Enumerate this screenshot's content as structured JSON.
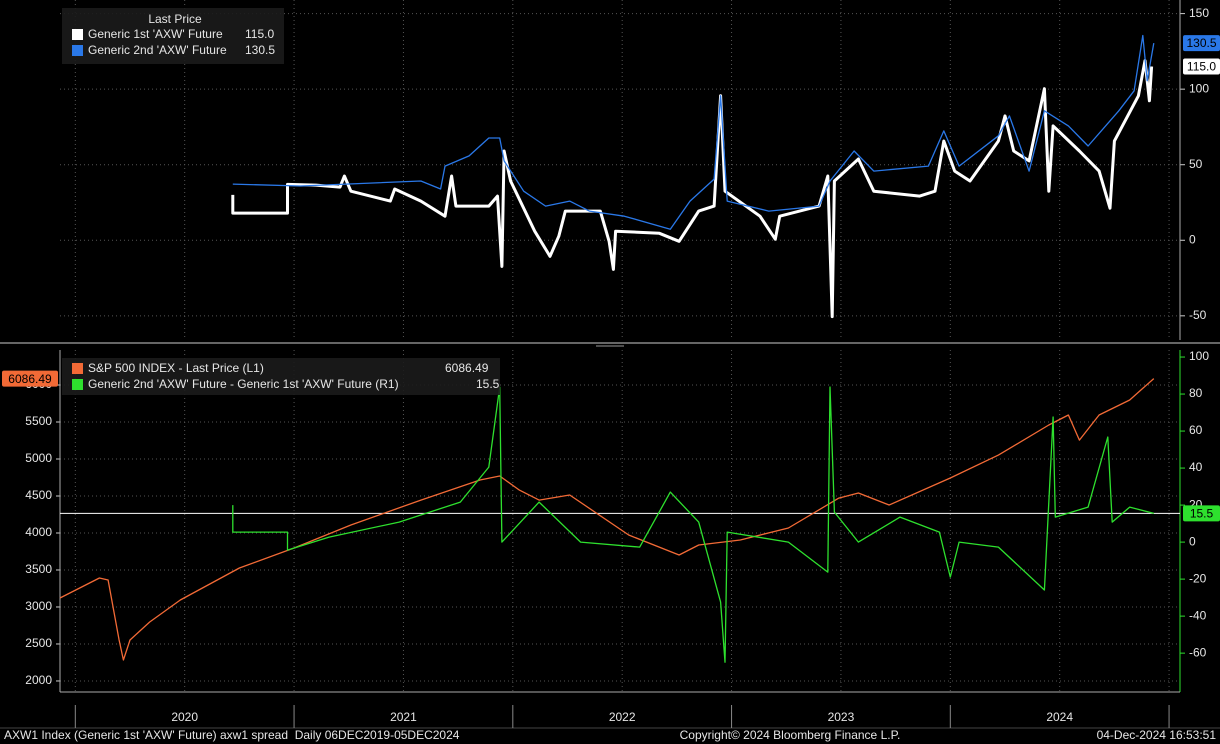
{
  "chart_data": [
    {
      "type": "line",
      "legend_title": "Last Price",
      "xlim": [
        2019.93,
        2025.05
      ],
      "ylim": [
        -66,
        159
      ],
      "yticks": [
        -50,
        0,
        50,
        100,
        150
      ],
      "grid": true,
      "series": [
        {
          "name": "Generic 1st 'AXW' Future",
          "color": "#ffffff",
          "value_label": "115.0",
          "x": [
            2020.72,
            2020.72,
            2020.97,
            2020.97,
            2021.1,
            2021.21,
            2021.23,
            2021.26,
            2021.44,
            2021.46,
            2021.58,
            2021.69,
            2021.72,
            2021.74,
            2021.89,
            2021.93,
            2021.95,
            2021.96,
            2021.99,
            2022.1,
            2022.17,
            2022.21,
            2022.24,
            2022.4,
            2022.44,
            2022.46,
            2022.47,
            2022.67,
            2022.76,
            2022.85,
            2022.92,
            2022.95,
            2022.97,
            2023.13,
            2023.2,
            2023.22,
            2023.4,
            2023.44,
            2023.46,
            2023.47,
            2023.58,
            2023.65,
            2023.86,
            2023.93,
            2023.97,
            2024.02,
            2024.09,
            2024.22,
            2024.25,
            2024.29,
            2024.36,
            2024.43,
            2024.45,
            2024.47,
            2024.59,
            2024.68,
            2024.73,
            2024.75,
            2024.86,
            2024.89,
            2024.91,
            2024.92
          ],
          "values": [
            30,
            18,
            18,
            37,
            36.5,
            35.2,
            42.5,
            32.5,
            25.9,
            33.9,
            25.9,
            15.9,
            42.5,
            22.6,
            22.6,
            29.2,
            -17.3,
            59.1,
            39.2,
            6.0,
            -10.6,
            2.7,
            19.3,
            19.3,
            -0.7,
            -19.3,
            6.0,
            4.6,
            -0.7,
            19.3,
            22.6,
            95.6,
            32.5,
            15.9,
            0.7,
            15.9,
            22.6,
            42.5,
            -50.5,
            39.2,
            53.8,
            32.5,
            29.2,
            32.5,
            65.7,
            45.8,
            39.2,
            65.7,
            82.3,
            59.1,
            52.5,
            100.3,
            32.5,
            75.7,
            59.1,
            45.8,
            21.2,
            65.7,
            95.6,
            118.9,
            92.3,
            115.0
          ]
        },
        {
          "name": "Generic 2nd 'AXW' Future",
          "color": "#2a78e8",
          "x": [
            2020.72,
            2021.03,
            2021.58,
            2021.67,
            2021.69,
            2021.8,
            2021.89,
            2021.94,
            2021.96,
            2022.05,
            2022.15,
            2022.26,
            2022.35,
            2022.51,
            2022.72,
            2022.81,
            2022.92,
            2022.95,
            2022.98,
            2023.17,
            2023.4,
            2023.45,
            2023.56,
            2023.65,
            2023.9,
            2023.97,
            2024.04,
            2024.22,
            2024.27,
            2024.36,
            2024.43,
            2024.54,
            2024.63,
            2024.77,
            2024.84,
            2024.88,
            2024.9,
            2024.93
          ],
          "values": [
            37.2,
            35.9,
            39.2,
            33.9,
            49.1,
            55.8,
            67.7,
            67.7,
            52.5,
            32.5,
            22.6,
            25.9,
            19.3,
            15.9,
            7.3,
            25.9,
            40.5,
            95.6,
            25.9,
            19.3,
            22.6,
            39.2,
            59.1,
            45.8,
            49.1,
            72.4,
            49.1,
            69.1,
            82.3,
            45.8,
            85.7,
            75.7,
            62.4,
            85.7,
            98.9,
            135.5,
            105.6,
            130.5
          ]
        }
      ]
    },
    {
      "type": "line",
      "xlim": [
        2019.93,
        2025.05
      ],
      "ylim": [
        1851,
        6473
      ],
      "yticks": [
        2000,
        2500,
        3000,
        3500,
        4000,
        4500,
        5000,
        5500,
        6000
      ],
      "y2lim": [
        -81,
        103.8
      ],
      "y2ticks": [
        -60,
        -40,
        -20,
        0,
        20,
        40,
        60,
        80,
        100
      ],
      "grid": true,
      "xticks": [
        {
          "value": 2020.5,
          "label": "2020"
        },
        {
          "value": 2021.5,
          "label": "2021"
        },
        {
          "value": 2022.5,
          "label": "2022"
        },
        {
          "value": 2023.5,
          "label": "2023"
        },
        {
          "value": 2024.5,
          "label": "2024"
        }
      ],
      "series": [
        {
          "name": "S&P 500 INDEX - Last Price (L1)",
          "color": "#f26a36",
          "x": [
            2019.93,
            2020.11,
            2020.15,
            2020.2,
            2020.22,
            2020.25,
            2020.34,
            2020.48,
            2020.75,
            2021.0,
            2021.26,
            2021.58,
            2021.85,
            2021.94,
            2022.03,
            2022.12,
            2022.26,
            2022.53,
            2022.76,
            2022.85,
            2023.04,
            2023.26,
            2023.49,
            2023.58,
            2023.72,
            2024.0,
            2024.22,
            2024.45,
            2024.54,
            2024.59,
            2024.68,
            2024.82,
            2024.93
          ],
          "values": [
            3121,
            3392,
            3365,
            2554,
            2284,
            2554,
            2797,
            3094,
            3527,
            3797,
            4108,
            4445,
            4716,
            4770,
            4580,
            4445,
            4513,
            3973,
            3702,
            3837,
            3905,
            4067,
            4472,
            4540,
            4378,
            4743,
            5053,
            5459,
            5594,
            5256,
            5594,
            5797,
            6086.49
          ]
        },
        {
          "name": "Generic 2nd 'AXW' Future - Generic 1st 'AXW' Future (R1)",
          "color": "#2ee02e",
          "axis": "y2",
          "x": [
            2020.72,
            2020.72,
            2020.97,
            2020.97,
            2021.16,
            2021.48,
            2021.76,
            2021.89,
            2021.94,
            2021.95,
            2022.12,
            2022.31,
            2022.58,
            2022.72,
            2022.85,
            2022.95,
            2022.97,
            2022.98,
            2023.26,
            2023.44,
            2023.45,
            2023.47,
            2023.58,
            2023.77,
            2023.95,
            2024.0,
            2024.04,
            2024.22,
            2024.43,
            2024.47,
            2024.48,
            2024.63,
            2024.72,
            2024.74,
            2024.82,
            2024.93
          ],
          "values": [
            20.0,
            5.4,
            5.4,
            -4.3,
            2.7,
            10.8,
            21.6,
            40.5,
            83.8,
            0,
            21.6,
            0,
            -2.7,
            27.0,
            10.8,
            -32.4,
            -64.9,
            5.4,
            0,
            -16.2,
            83.8,
            16.2,
            0,
            13.5,
            5.4,
            -18.9,
            0,
            -2.7,
            -25.9,
            67.6,
            13.5,
            18.9,
            56.8,
            10.8,
            18.9,
            15.5
          ]
        }
      ]
    }
  ],
  "footer": {
    "left": "AXW1 Index (Generic 1st 'AXW' Future) axw1 spread  Daily 06DEC2019-05DEC2024",
    "center": "Copyright© 2024 Bloomberg Finance L.P.",
    "right": "04-Dec-2024 16:53:51"
  }
}
